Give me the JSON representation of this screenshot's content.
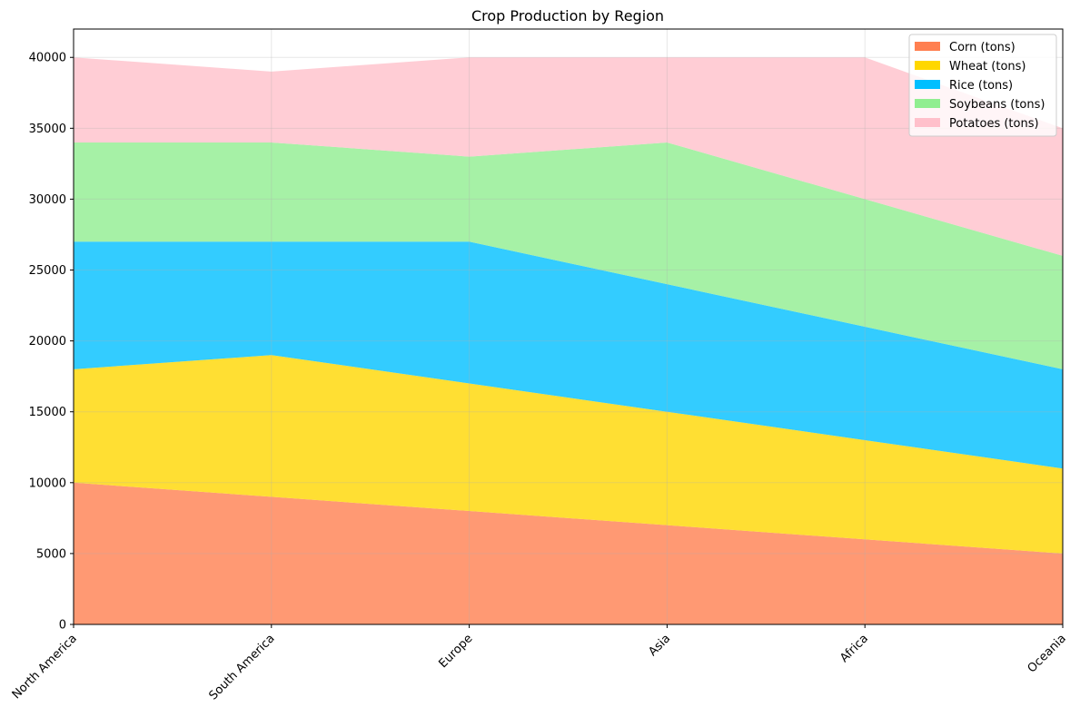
{
  "chart_data": {
    "type": "area",
    "stacked": true,
    "title": "Crop Production by Region",
    "xlabel": "",
    "ylabel": "",
    "categories": [
      "North America",
      "South America",
      "Europe",
      "Asia",
      "Africa",
      "Oceania"
    ],
    "ylim": [
      0,
      42000
    ],
    "yticks": [
      0,
      5000,
      10000,
      15000,
      20000,
      25000,
      30000,
      35000,
      40000
    ],
    "grid": true,
    "legend_position": "top-right",
    "series": [
      {
        "name": "Corn (tons)",
        "values": [
          10000,
          9000,
          8000,
          7000,
          6000,
          5000
        ],
        "color": "#FF7F50"
      },
      {
        "name": "Wheat (tons)",
        "values": [
          8000,
          10000,
          9000,
          8000,
          7000,
          6000
        ],
        "color": "#FFD700"
      },
      {
        "name": "Rice (tons)",
        "values": [
          9000,
          8000,
          10000,
          9000,
          8000,
          7000
        ],
        "color": "#00BFFF"
      },
      {
        "name": "Soybeans (tons)",
        "values": [
          7000,
          7000,
          6000,
          10000,
          9000,
          8000
        ],
        "color": "#90EE90"
      },
      {
        "name": "Potatoes (tons)",
        "values": [
          6000,
          5000,
          7000,
          6000,
          10000,
          9000
        ],
        "color": "#FFC0CB"
      }
    ]
  }
}
